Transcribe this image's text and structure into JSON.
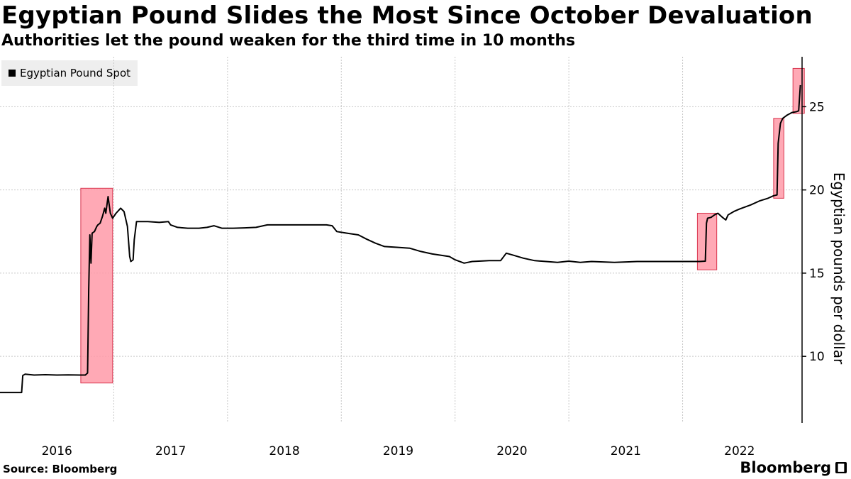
{
  "header": {
    "title": "Egyptian Pound Slides the Most Since October Devaluation",
    "subtitle": "Authorities let the pound weaken for the third time in 10 months"
  },
  "footer": {
    "source": "Source: Bloomberg",
    "brand": "Bloomberg"
  },
  "chart_data": {
    "type": "line",
    "title": "Egyptian Pound Slides the Most Since October Devaluation",
    "subtitle": "Authorities let the pound weaken for the third time in 10 months",
    "xlabel": "",
    "ylabel": "Egyptian pounds per dollar",
    "ylim": [
      6,
      28
    ],
    "xlim": [
      2016.0,
      2023.05
    ],
    "yticks": [
      10,
      15,
      20,
      25
    ],
    "xticks": [
      {
        "label": "2016",
        "pos": 2016.5
      },
      {
        "label": "2017",
        "pos": 2017.5
      },
      {
        "label": "2018",
        "pos": 2018.5
      },
      {
        "label": "2019",
        "pos": 2019.5
      },
      {
        "label": "2020",
        "pos": 2020.5
      },
      {
        "label": "2021",
        "pos": 2021.5
      },
      {
        "label": "2022",
        "pos": 2022.5
      }
    ],
    "gridlines": [
      2017.0,
      2018.0,
      2019.0,
      2020.0,
      2021.0,
      2022.0
    ],
    "legend": {
      "label": "Egyptian Pound Spot",
      "placement": "top-left"
    },
    "color": "#000000",
    "highlight_color": "#ff9aa8",
    "highlights": [
      {
        "x0": 2016.71,
        "x1": 2016.99,
        "y0": 8.4,
        "y1": 20.1
      },
      {
        "x0": 2022.13,
        "x1": 2022.3,
        "y0": 15.2,
        "y1": 18.6
      },
      {
        "x0": 2022.8,
        "x1": 2022.89,
        "y0": 19.5,
        "y1": 24.3
      },
      {
        "x0": 2022.97,
        "x1": 2023.07,
        "y0": 24.6,
        "y1": 27.3
      }
    ],
    "series": [
      {
        "name": "Egyptian Pound Spot",
        "points": [
          [
            2016.0,
            7.83
          ],
          [
            2016.19,
            7.83
          ],
          [
            2016.2,
            8.85
          ],
          [
            2016.22,
            8.93
          ],
          [
            2016.3,
            8.88
          ],
          [
            2016.4,
            8.9
          ],
          [
            2016.5,
            8.88
          ],
          [
            2016.6,
            8.89
          ],
          [
            2016.7,
            8.88
          ],
          [
            2016.75,
            8.88
          ],
          [
            2016.77,
            9.0
          ],
          [
            2016.78,
            14.0
          ],
          [
            2016.79,
            17.3
          ],
          [
            2016.8,
            15.6
          ],
          [
            2016.81,
            17.4
          ],
          [
            2016.83,
            17.5
          ],
          [
            2016.85,
            17.8
          ],
          [
            2016.86,
            17.9
          ],
          [
            2016.88,
            18.0
          ],
          [
            2016.9,
            18.4
          ],
          [
            2016.92,
            18.9
          ],
          [
            2016.93,
            18.6
          ],
          [
            2016.95,
            19.6
          ],
          [
            2016.97,
            18.6
          ],
          [
            2016.99,
            18.3
          ],
          [
            2017.02,
            18.6
          ],
          [
            2017.06,
            18.9
          ],
          [
            2017.09,
            18.7
          ],
          [
            2017.12,
            17.8
          ],
          [
            2017.14,
            16.0
          ],
          [
            2017.15,
            15.7
          ],
          [
            2017.17,
            15.8
          ],
          [
            2017.18,
            17.0
          ],
          [
            2017.2,
            18.1
          ],
          [
            2017.25,
            18.1
          ],
          [
            2017.3,
            18.1
          ],
          [
            2017.4,
            18.05
          ],
          [
            2017.48,
            18.1
          ],
          [
            2017.5,
            17.9
          ],
          [
            2017.56,
            17.75
          ],
          [
            2017.65,
            17.7
          ],
          [
            2017.75,
            17.7
          ],
          [
            2017.82,
            17.75
          ],
          [
            2017.88,
            17.85
          ],
          [
            2017.95,
            17.7
          ],
          [
            2018.05,
            17.7
          ],
          [
            2018.15,
            17.72
          ],
          [
            2018.25,
            17.75
          ],
          [
            2018.35,
            17.9
          ],
          [
            2018.5,
            17.9
          ],
          [
            2018.6,
            17.9
          ],
          [
            2018.7,
            17.9
          ],
          [
            2018.8,
            17.9
          ],
          [
            2018.87,
            17.9
          ],
          [
            2018.92,
            17.85
          ],
          [
            2018.96,
            17.5
          ],
          [
            2019.05,
            17.4
          ],
          [
            2019.15,
            17.3
          ],
          [
            2019.22,
            17.05
          ],
          [
            2019.3,
            16.8
          ],
          [
            2019.38,
            16.6
          ],
          [
            2019.5,
            16.55
          ],
          [
            2019.6,
            16.5
          ],
          [
            2019.7,
            16.3
          ],
          [
            2019.8,
            16.15
          ],
          [
            2019.95,
            16.0
          ],
          [
            2020.0,
            15.8
          ],
          [
            2020.08,
            15.6
          ],
          [
            2020.15,
            15.7
          ],
          [
            2020.3,
            15.75
          ],
          [
            2020.4,
            15.75
          ],
          [
            2020.45,
            16.2
          ],
          [
            2020.5,
            16.1
          ],
          [
            2020.6,
            15.9
          ],
          [
            2020.7,
            15.75
          ],
          [
            2020.8,
            15.7
          ],
          [
            2020.9,
            15.65
          ],
          [
            2021.0,
            15.72
          ],
          [
            2021.1,
            15.65
          ],
          [
            2021.2,
            15.7
          ],
          [
            2021.4,
            15.65
          ],
          [
            2021.6,
            15.7
          ],
          [
            2021.8,
            15.7
          ],
          [
            2022.0,
            15.7
          ],
          [
            2022.15,
            15.7
          ],
          [
            2022.2,
            15.72
          ],
          [
            2022.21,
            18.0
          ],
          [
            2022.22,
            18.3
          ],
          [
            2022.25,
            18.35
          ],
          [
            2022.28,
            18.5
          ],
          [
            2022.31,
            18.6
          ],
          [
            2022.35,
            18.35
          ],
          [
            2022.38,
            18.2
          ],
          [
            2022.4,
            18.5
          ],
          [
            2022.45,
            18.7
          ],
          [
            2022.5,
            18.85
          ],
          [
            2022.6,
            19.1
          ],
          [
            2022.68,
            19.35
          ],
          [
            2022.75,
            19.5
          ],
          [
            2022.8,
            19.65
          ],
          [
            2022.83,
            19.7
          ],
          [
            2022.84,
            22.8
          ],
          [
            2022.86,
            24.0
          ],
          [
            2022.88,
            24.3
          ],
          [
            2022.92,
            24.5
          ],
          [
            2022.96,
            24.65
          ],
          [
            2023.0,
            24.7
          ],
          [
            2023.02,
            24.75
          ],
          [
            2023.035,
            26.3
          ]
        ]
      }
    ]
  }
}
